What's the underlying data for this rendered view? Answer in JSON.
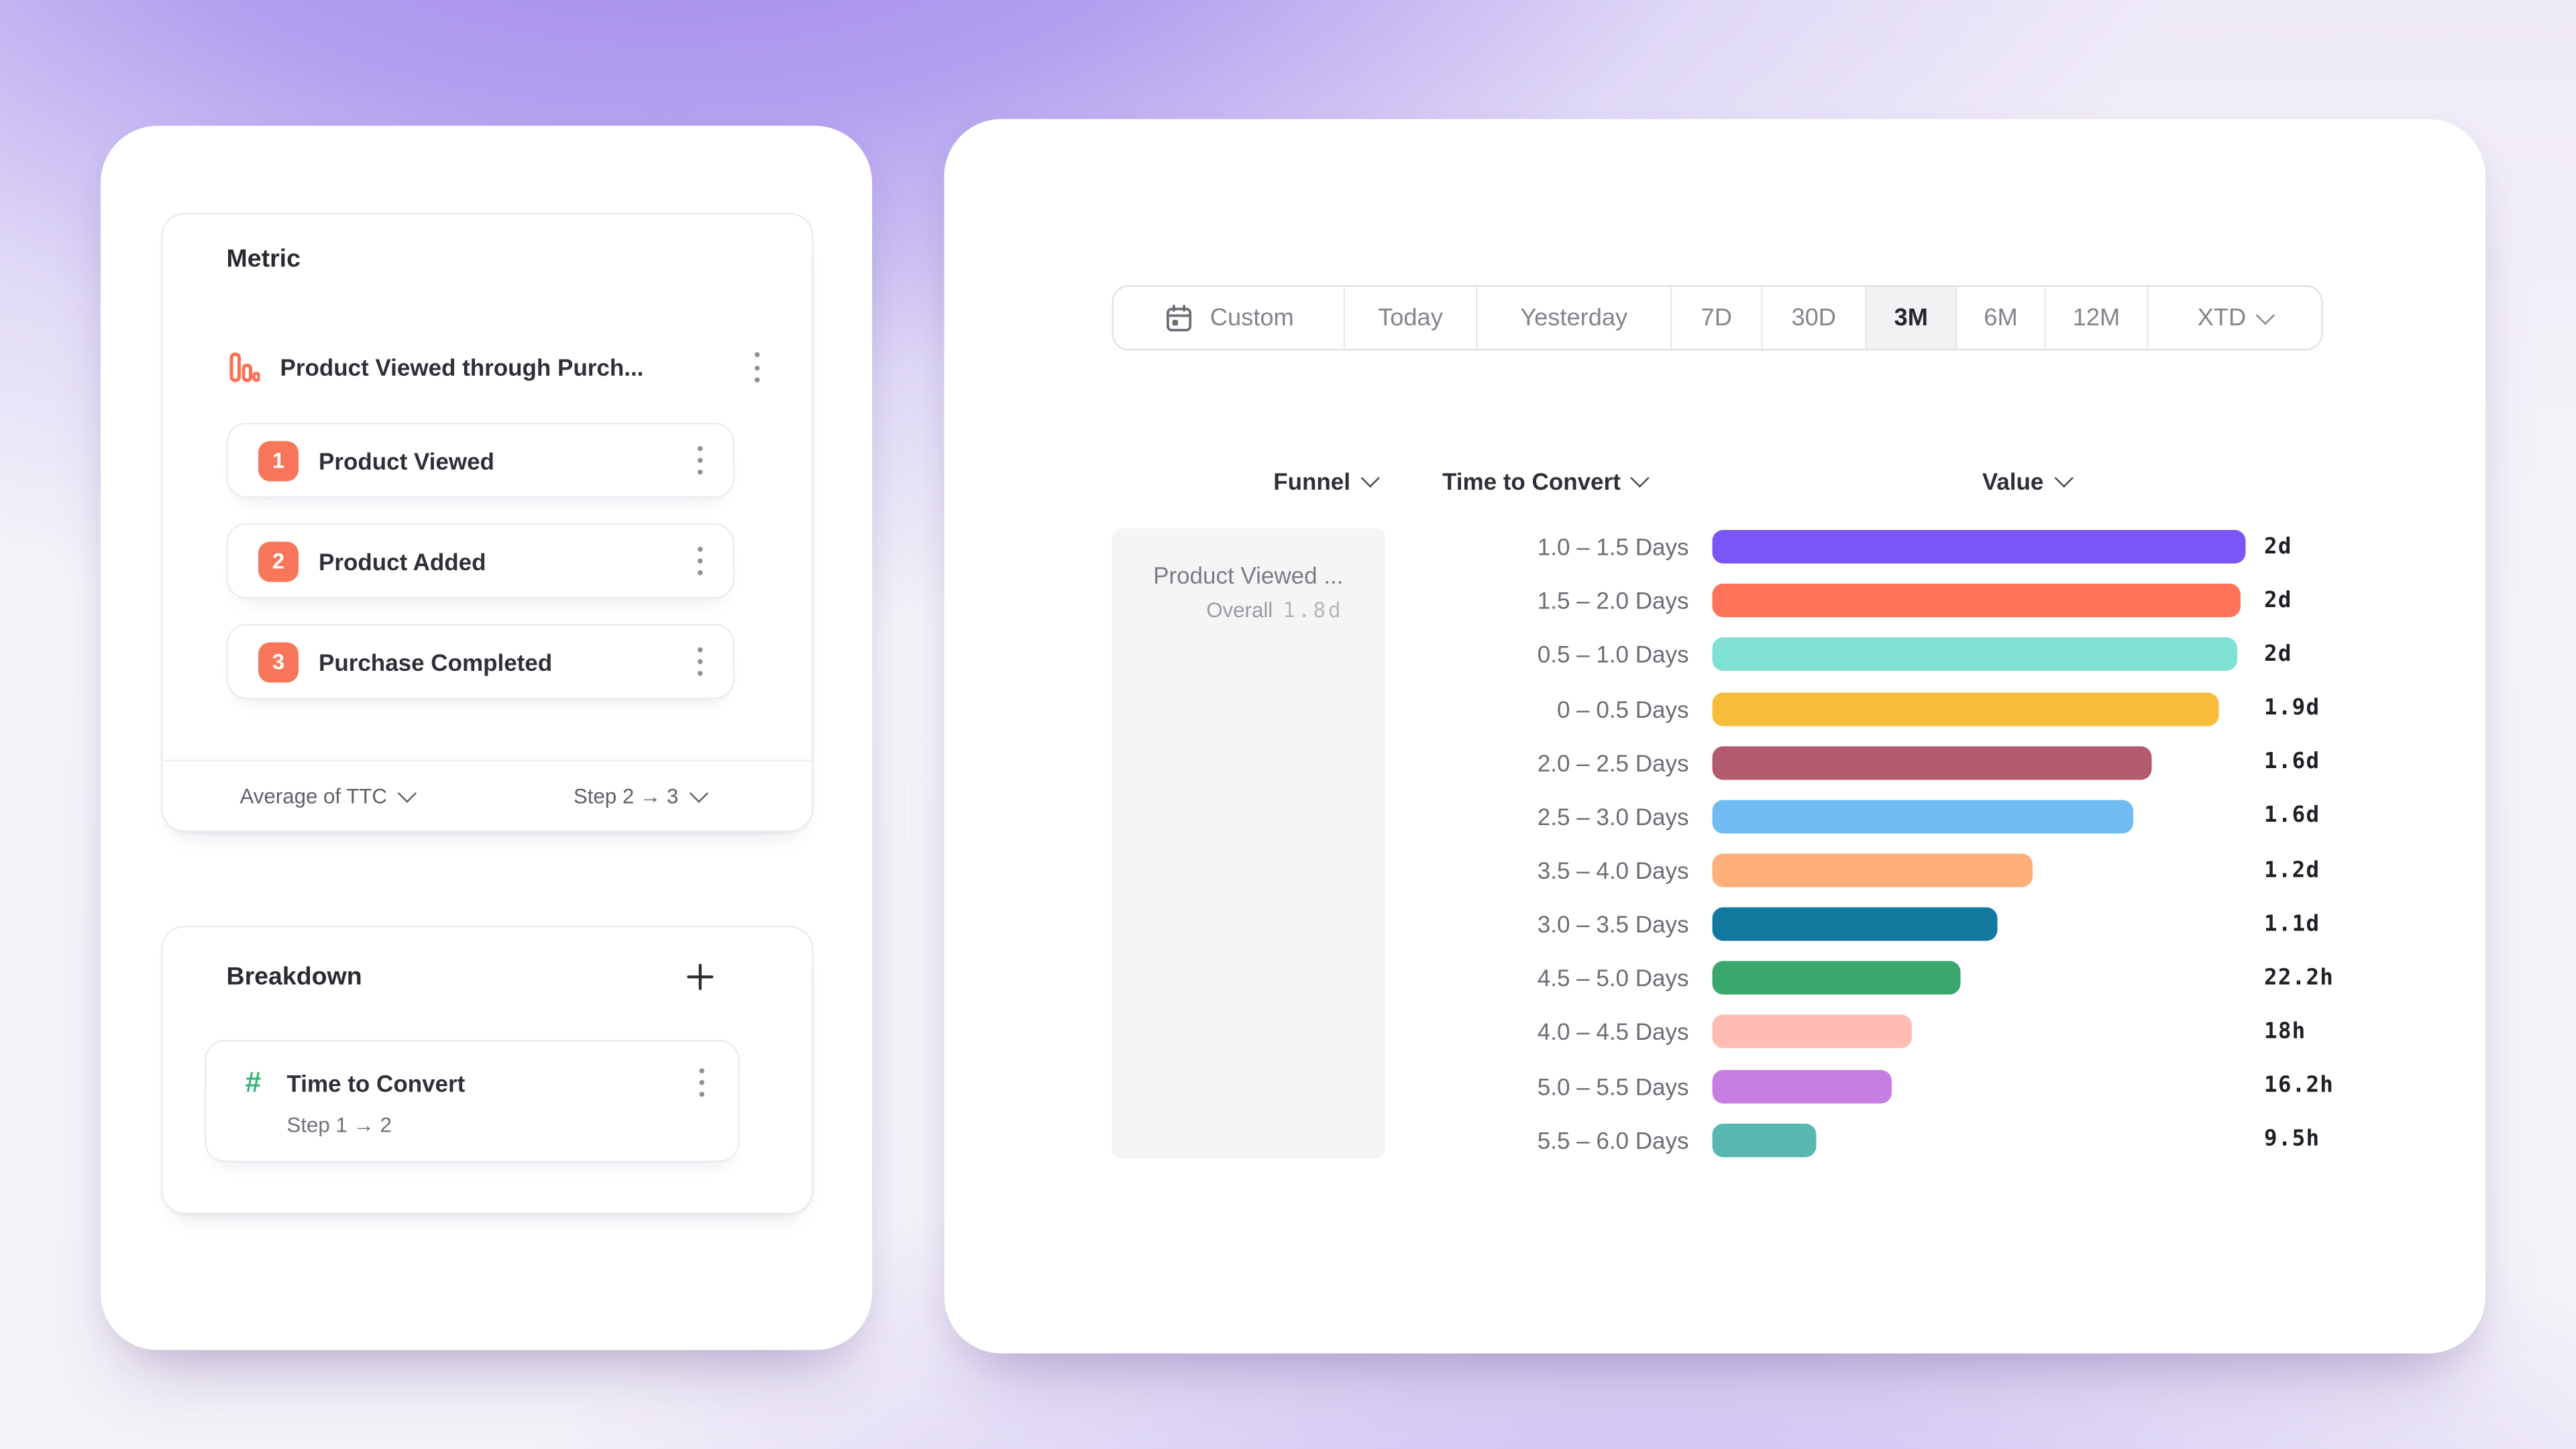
{
  "colors": {
    "accent_coral": "#F8775A",
    "funnel_icon": "#FF6E52",
    "hash_green": "#35B478",
    "active_tab_bg": "#F2F2F4",
    "funnel_cell_bg": "#F5F5F6"
  },
  "left_panel": {
    "metric": {
      "section_title": "Metric",
      "name": "Product Viewed through Purch...",
      "steps": [
        {
          "num": "1",
          "label": "Product Viewed"
        },
        {
          "num": "2",
          "label": "Product Added"
        },
        {
          "num": "3",
          "label": "Purchase Completed"
        }
      ],
      "aggregation_label": "Average of TTC",
      "step_range_label": "Step 2 → 3"
    },
    "breakdown": {
      "section_title": "Breakdown",
      "add_label": "+",
      "item_label": "Time to Convert",
      "item_sub": "Step 1 → 2"
    }
  },
  "right_panel": {
    "date_tabs": {
      "selected": "3M",
      "options": [
        {
          "label": "Custom",
          "icon": "calendar-icon"
        },
        {
          "label": "Today"
        },
        {
          "label": "Yesterday"
        },
        {
          "label": "7D"
        },
        {
          "label": "30D"
        },
        {
          "label": "3M"
        },
        {
          "label": "6M"
        },
        {
          "label": "12M"
        },
        {
          "label": "XTD",
          "caret": true
        }
      ]
    },
    "columns": {
      "funnel": "Funnel",
      "ttc": "Time to Convert",
      "value": "Value"
    },
    "funnel_cell": {
      "title": "Product Viewed ...",
      "overall_label": "Overall",
      "overall_value": "1.8d"
    }
  },
  "chart_data": {
    "type": "bar",
    "orientation": "horizontal",
    "title": "",
    "xlabel": "Value",
    "ylabel": "Time to Convert",
    "x_max_days": 2,
    "categories": [
      "1.0 – 1.5 Days",
      "1.5 – 2.0 Days",
      "0.5 – 1.0 Days",
      "0 – 0.5 Days",
      "2.0 – 2.5 Days",
      "2.5 – 3.0 Days",
      "3.5 – 4.0 Days",
      "3.0 – 3.5 Days",
      "4.5 – 5.0 Days",
      "4.0 – 4.5 Days",
      "5.0 – 5.5 Days",
      "5.5 – 6.0 Days"
    ],
    "values_display": [
      "2d",
      "2d",
      "2d",
      "1.9d",
      "1.6d",
      "1.6d",
      "1.2d",
      "1.1d",
      "22.2h",
      "18h",
      "16.2h",
      "9.5h"
    ],
    "values_days": [
      2.0,
      1.98,
      1.97,
      1.9,
      1.65,
      1.58,
      1.2,
      1.07,
      0.93,
      0.75,
      0.67,
      0.39
    ],
    "colors": [
      "#7A56F6",
      "#FF7459",
      "#7FE0D4",
      "#F8BC3B",
      "#B25A6E",
      "#6FBBF2",
      "#FFAF7A",
      "#12789E",
      "#3AA76D",
      "#FFBCB3",
      "#C77EE2",
      "#58B8B0"
    ]
  }
}
